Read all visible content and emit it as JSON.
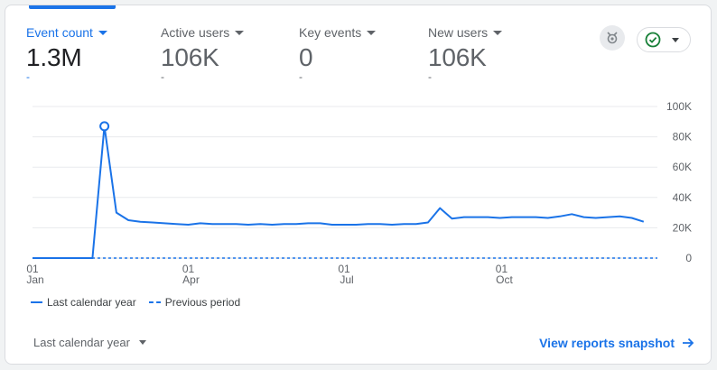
{
  "metrics": [
    {
      "label": "Event count",
      "value": "1.3M",
      "delta": "-",
      "active": true
    },
    {
      "label": "Active users",
      "value": "106K",
      "delta": "-",
      "active": false
    },
    {
      "label": "Key events",
      "value": "0",
      "delta": "-",
      "active": false
    },
    {
      "label": "New users",
      "value": "106K",
      "delta": "-",
      "active": false
    }
  ],
  "icons": {
    "insights": "insights-icon",
    "status": "check-circle-icon",
    "dropdown": "chevron-down-icon",
    "arrow": "arrow-right-icon"
  },
  "colors": {
    "accent": "#1a73e8",
    "status_ok": "#188038"
  },
  "legend": {
    "current": "Last calendar year",
    "previous": "Previous period"
  },
  "footer": {
    "period_label": "Last calendar year",
    "snapshot_link": "View reports snapshot"
  },
  "chart_data": {
    "type": "line",
    "y_ticks": [
      "100K",
      "80K",
      "60K",
      "40K",
      "20K",
      "0"
    ],
    "x_ticks": [
      {
        "day": "01",
        "month": "Jan"
      },
      {
        "day": "01",
        "month": "Apr"
      },
      {
        "day": "01",
        "month": "Jul"
      },
      {
        "day": "01",
        "month": "Oct"
      }
    ],
    "ylim": [
      0,
      100000
    ],
    "xlim": [
      "2024-01-01",
      "2024-12-31"
    ],
    "grid": true,
    "series": [
      {
        "name": "Last calendar year",
        "style": "solid",
        "x": [
          "2024-01-01",
          "2024-01-08",
          "2024-01-15",
          "2024-01-22",
          "2024-01-29",
          "2024-02-05",
          "2024-02-12",
          "2024-02-19",
          "2024-02-26",
          "2024-03-04",
          "2024-03-11",
          "2024-03-18",
          "2024-03-25",
          "2024-04-01",
          "2024-04-08",
          "2024-04-15",
          "2024-04-22",
          "2024-04-29",
          "2024-05-06",
          "2024-05-13",
          "2024-05-20",
          "2024-05-27",
          "2024-06-03",
          "2024-06-10",
          "2024-06-17",
          "2024-06-24",
          "2024-07-01",
          "2024-07-08",
          "2024-07-15",
          "2024-07-22",
          "2024-07-29",
          "2024-08-05",
          "2024-08-12",
          "2024-08-19",
          "2024-08-26",
          "2024-09-02",
          "2024-09-09",
          "2024-09-16",
          "2024-09-23",
          "2024-09-30",
          "2024-10-07",
          "2024-10-14",
          "2024-10-21",
          "2024-10-28",
          "2024-11-04",
          "2024-11-11",
          "2024-11-18",
          "2024-11-25",
          "2024-12-02",
          "2024-12-09",
          "2024-12-16",
          "2024-12-23",
          "2024-12-30"
        ],
        "y": [
          0,
          0,
          0,
          0,
          0,
          0,
          87000,
          30000,
          25000,
          24000,
          23500,
          23000,
          22500,
          22000,
          23000,
          22500,
          22500,
          22500,
          22000,
          22500,
          22000,
          22500,
          22500,
          23000,
          23000,
          22000,
          22000,
          22000,
          22500,
          22500,
          22000,
          22500,
          22500,
          23500,
          33000,
          26000,
          27000,
          27000,
          27000,
          26500,
          27000,
          27000,
          27000,
          26500,
          27500,
          29000,
          27000,
          26500,
          27000,
          27500,
          26500,
          24000,
          0
        ],
        "trim_last": true,
        "highlight": {
          "x": "2024-02-12",
          "y": 87000
        }
      },
      {
        "name": "Previous period",
        "style": "dashed",
        "x": [
          "2024-01-01",
          "2024-12-31"
        ],
        "y": [
          0,
          0
        ]
      }
    ]
  }
}
